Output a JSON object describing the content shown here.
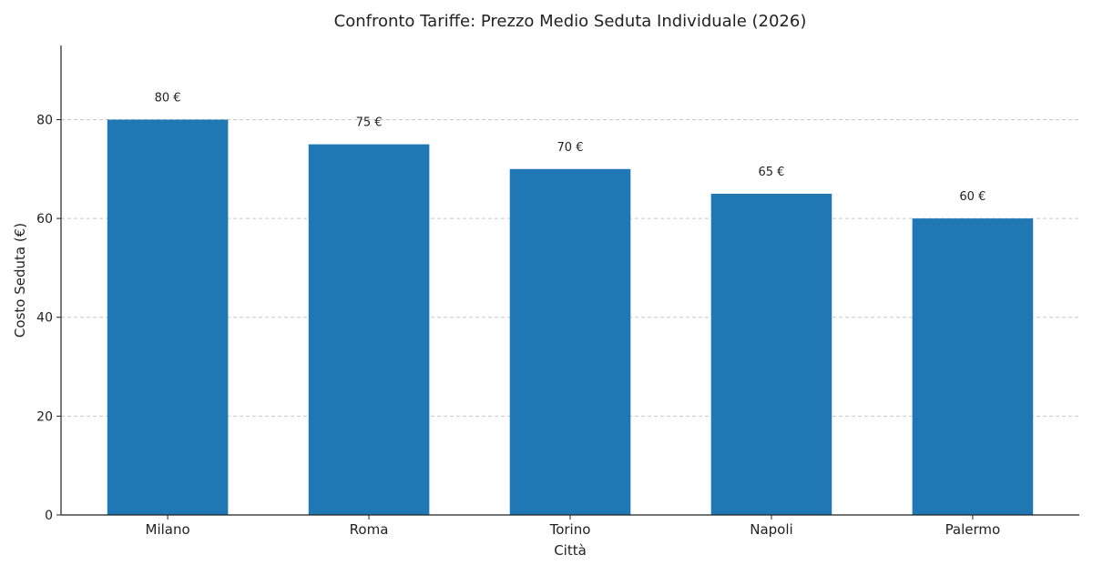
{
  "chart_data": {
    "type": "bar",
    "title": "Confronto Tariffe: Prezzo Medio Seduta Individuale (2026)",
    "xlabel": "Città",
    "ylabel": "Costo Seduta (€)",
    "categories": [
      "Milano",
      "Roma",
      "Torino",
      "Napoli",
      "Palermo"
    ],
    "values": [
      80,
      75,
      70,
      65,
      60
    ],
    "data_labels": [
      "80 €",
      "75 €",
      "70 €",
      "65 €",
      "60 €"
    ],
    "ylim": [
      0,
      95
    ],
    "yticks": [
      0,
      20,
      40,
      60,
      80
    ],
    "ytick_labels": [
      "0",
      "20",
      "40",
      "60",
      "80"
    ],
    "grid": "y-dashed",
    "bar_color": "#1f77b4",
    "legend": "none"
  }
}
